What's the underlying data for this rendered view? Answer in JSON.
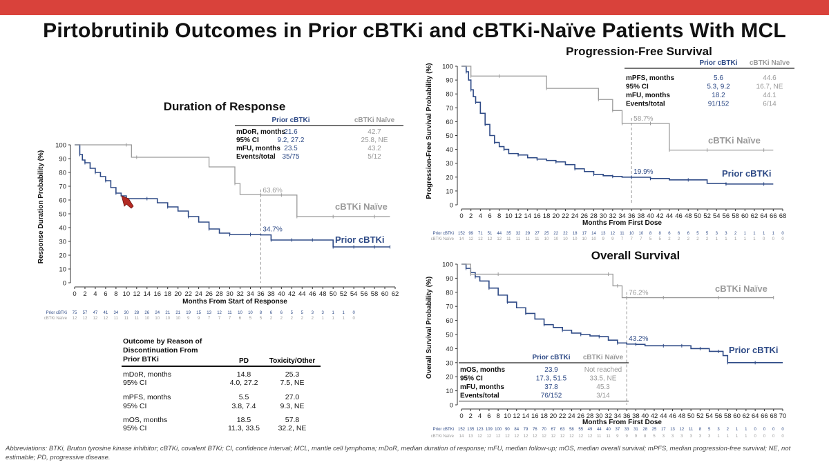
{
  "title": "Pirtobrutinib Outcomes in Prior cBTKi and cBTKi-Naïve Patients With MCL",
  "colors": {
    "accent_bar": "#d9423b",
    "prior": "#2e4a86",
    "naive": "#9a9a9a"
  },
  "chart_data": [
    {
      "type": "line",
      "title": "Duration of Response",
      "xlabel": "Months From Start of Response",
      "ylabel": "Response Duration Probability (%)",
      "xlim": [
        0,
        62
      ],
      "ylim": [
        0,
        100
      ],
      "xticks": [
        0,
        2,
        4,
        6,
        8,
        10,
        12,
        14,
        16,
        18,
        20,
        22,
        24,
        26,
        28,
        30,
        32,
        34,
        36,
        38,
        40,
        42,
        44,
        46,
        48,
        50,
        52,
        54,
        56,
        58,
        60,
        62
      ],
      "yticks": [
        0,
        10,
        20,
        30,
        40,
        50,
        60,
        70,
        80,
        90,
        100
      ],
      "series": [
        {
          "name": "Prior cBTKi",
          "x": [
            0,
            1,
            1.5,
            2,
            3,
            4,
            5,
            6,
            7,
            8,
            9,
            10,
            12,
            14,
            16,
            18,
            20,
            22,
            24,
            26,
            28,
            30,
            32,
            34,
            36,
            38,
            40,
            42,
            44,
            46,
            48,
            50,
            52,
            54,
            56,
            58,
            60,
            61
          ],
          "y": [
            100,
            93,
            89,
            87,
            83,
            80,
            77,
            74,
            69,
            65,
            63,
            61,
            61,
            61,
            58,
            55,
            52,
            48,
            44,
            39,
            36,
            35,
            35,
            35,
            34.7,
            31,
            31,
            31,
            31,
            31,
            31,
            26,
            26,
            26,
            26,
            26,
            26,
            26
          ]
        },
        {
          "name": "cBTKi Naïve",
          "x": [
            0,
            10,
            11,
            12,
            26,
            31,
            32,
            36,
            38,
            40,
            42,
            43,
            46,
            50,
            54,
            58,
            61
          ],
          "y": [
            100,
            100,
            91,
            91,
            84,
            72,
            64,
            63.6,
            63.6,
            63.6,
            63.6,
            48,
            48,
            48,
            48,
            48,
            48
          ]
        }
      ],
      "annotations": [
        {
          "x": 36,
          "text": "63.6%"
        },
        {
          "x": 36,
          "text": "34.7%"
        }
      ],
      "series_labels": [
        "cBTKi Naïve",
        "Prior cBTKi"
      ],
      "stats": {
        "headers": [
          "Prior cBTKi",
          "cBTKi Naïve"
        ],
        "rows": [
          {
            "label": "mDoR, months",
            "prior": "21.6",
            "naive": "42.7"
          },
          {
            "label": "95% CI",
            "prior": "9.2, 27.2",
            "naive": "25.8, NE"
          },
          {
            "label": "mFU, months",
            "prior": "23.5",
            "naive": "43.2"
          },
          {
            "label": "Events/total",
            "prior": "35/75",
            "naive": "5/12"
          }
        ]
      },
      "risk_table": {
        "prior_label": "Prior cBTKi",
        "naive_label": "cBTKi Naïve",
        "prior": [
          "75",
          "57",
          "47",
          "41",
          "34",
          "30",
          "28",
          "26",
          "24",
          "21",
          "21",
          "19",
          "15",
          "13",
          "12",
          "11",
          "10",
          "10",
          "8",
          "6",
          "6",
          "5",
          "5",
          "3",
          "3",
          "1",
          "1",
          "0"
        ],
        "naive": [
          "12",
          "12",
          "12",
          "12",
          "11",
          "11",
          "11",
          "10",
          "10",
          "10",
          "10",
          "9",
          "9",
          "7",
          "7",
          "7",
          "6",
          "5",
          "5",
          "2",
          "2",
          "2",
          "2",
          "2",
          "1",
          "1",
          "1",
          "0"
        ]
      }
    },
    {
      "type": "line",
      "title": "Progression-Free Survival",
      "xlabel": "Months From First Dose",
      "ylabel": "Progression-Free Survival Probability (%)",
      "xlim": [
        0,
        68
      ],
      "ylim": [
        0,
        100
      ],
      "xticks": [
        0,
        2,
        4,
        6,
        8,
        10,
        12,
        14,
        16,
        18,
        20,
        22,
        24,
        26,
        28,
        30,
        32,
        34,
        36,
        38,
        40,
        42,
        44,
        46,
        48,
        50,
        52,
        54,
        56,
        58,
        60,
        62,
        64,
        66,
        68
      ],
      "yticks": [
        0,
        10,
        20,
        30,
        40,
        50,
        60,
        70,
        80,
        90,
        100
      ],
      "series": [
        {
          "name": "Prior cBTKi",
          "x": [
            0,
            1,
            1.5,
            2,
            2.5,
            3,
            4,
            5,
            6,
            7,
            8,
            9,
            10,
            12,
            14,
            16,
            18,
            20,
            22,
            24,
            26,
            28,
            30,
            32,
            34,
            36,
            38,
            40,
            44,
            48,
            52,
            56,
            60,
            64,
            66
          ],
          "y": [
            100,
            96,
            90,
            83,
            78,
            74,
            66,
            58,
            50,
            45,
            42,
            40,
            37,
            36,
            34,
            33,
            32,
            31,
            29,
            26,
            24,
            22,
            21,
            20.5,
            20,
            19.9,
            19.9,
            19,
            18,
            18,
            15.5,
            15,
            15,
            15,
            15
          ]
        },
        {
          "name": "cBTKi Naïve",
          "x": [
            0,
            2,
            4,
            8,
            16,
            18,
            26,
            29,
            30,
            32,
            33,
            34,
            36,
            40,
            42,
            44,
            48,
            52,
            58,
            64,
            66
          ],
          "y": [
            100,
            92.9,
            92.9,
            92.9,
            92.9,
            84,
            84,
            76,
            76,
            68,
            68,
            58.7,
            58.7,
            58.7,
            58.7,
            39.5,
            39.5,
            39.5,
            39.5,
            39.5,
            39.5
          ]
        }
      ],
      "annotations": [
        {
          "x": 36,
          "text": "58.7%"
        },
        {
          "x": 36,
          "text": "19.9%"
        }
      ],
      "series_labels": [
        "cBTKi Naïve",
        "Prior cBTKi"
      ],
      "stats": {
        "headers": [
          "Prior cBTKi",
          "cBTKi Naïve"
        ],
        "rows": [
          {
            "label": "mPFS, months",
            "prior": "5.6",
            "naive": "44.6"
          },
          {
            "label": "95% CI",
            "prior": "5.3, 9.2",
            "naive": "16.7, NE"
          },
          {
            "label": "mFU, months",
            "prior": "18.2",
            "naive": "44.1"
          },
          {
            "label": "Events/total",
            "prior": "91/152",
            "naive": "6/14"
          }
        ]
      },
      "risk_table": {
        "prior_label": "Prior cBTKi",
        "naive_label": "cBTKi Naïve",
        "prior": [
          "152",
          "99",
          "71",
          "51",
          "44",
          "35",
          "32",
          "29",
          "27",
          "25",
          "22",
          "22",
          "18",
          "17",
          "14",
          "13",
          "12",
          "11",
          "10",
          "10",
          "8",
          "8",
          "6",
          "6",
          "6",
          "5",
          "5",
          "3",
          "3",
          "2",
          "1",
          "1",
          "1",
          "1",
          "0"
        ],
        "naive": [
          "14",
          "12",
          "12",
          "12",
          "12",
          "11",
          "11",
          "11",
          "11",
          "10",
          "10",
          "10",
          "10",
          "10",
          "10",
          "9",
          "9",
          "7",
          "7",
          "7",
          "5",
          "5",
          "2",
          "2",
          "2",
          "2",
          "2",
          "1",
          "1",
          "1",
          "1",
          "1",
          "0",
          "0",
          "0"
        ]
      }
    },
    {
      "type": "line",
      "title": "Overall Survival",
      "xlabel": "Months From First Dose",
      "ylabel": "Overall Survival Probability (%)",
      "xlim": [
        0,
        70
      ],
      "ylim": [
        0,
        100
      ],
      "xticks": [
        0,
        2,
        4,
        6,
        8,
        10,
        12,
        14,
        16,
        18,
        20,
        22,
        24,
        26,
        28,
        30,
        32,
        34,
        36,
        38,
        40,
        42,
        44,
        46,
        48,
        50,
        52,
        54,
        56,
        58,
        60,
        62,
        64,
        66,
        68,
        70
      ],
      "yticks": [
        0,
        10,
        20,
        30,
        40,
        50,
        60,
        70,
        80,
        90,
        100
      ],
      "series": [
        {
          "name": "Prior cBTKi",
          "x": [
            0,
            1,
            2,
            3,
            4,
            6,
            8,
            10,
            12,
            14,
            16,
            18,
            20,
            22,
            24,
            26,
            28,
            30,
            32,
            34,
            36,
            38,
            40,
            44,
            46,
            48,
            50,
            52,
            54,
            56,
            57,
            58,
            60,
            64,
            70
          ],
          "y": [
            100,
            97,
            94,
            91,
            88,
            83,
            78,
            73,
            69,
            65,
            61,
            57,
            55,
            53,
            51,
            50,
            49,
            48.5,
            46,
            44,
            43.2,
            43,
            42,
            42,
            42,
            42,
            40,
            40,
            38,
            38,
            35,
            30,
            30,
            30,
            30
          ]
        },
        {
          "name": "cBTKi Naïve",
          "x": [
            0,
            2,
            4,
            8,
            16,
            32,
            33,
            34,
            35,
            36,
            40,
            44,
            48,
            56,
            62,
            68
          ],
          "y": [
            100,
            92.9,
            92.9,
            92.9,
            92.9,
            92.9,
            84.6,
            84.6,
            76.2,
            76.2,
            76.2,
            76.2,
            76.2,
            76.2,
            76.2,
            76.2
          ]
        }
      ],
      "annotations": [
        {
          "x": 36,
          "text": "76.2%"
        },
        {
          "x": 36,
          "text": "43.2%"
        }
      ],
      "series_labels": [
        "cBTKi Naïve",
        "Prior cBTKi"
      ],
      "stats": {
        "headers": [
          "Prior cBTKi",
          "cBTKi Naïve"
        ],
        "rows": [
          {
            "label": "mOS, months",
            "prior": "23.9",
            "naive": "Not reached"
          },
          {
            "label": "95% CI",
            "prior": "17.3, 51.5",
            "naive": "33.5, NE"
          },
          {
            "label": "mFU, months",
            "prior": "37.8",
            "naive": "45.3"
          },
          {
            "label": "Events/total",
            "prior": "76/152",
            "naive": "3/14"
          }
        ]
      },
      "risk_table": {
        "prior_label": "Prior cBTKi",
        "naive_label": "cBTKi Naïve",
        "prior": [
          "152",
          "135",
          "123",
          "109",
          "100",
          "90",
          "84",
          "79",
          "76",
          "70",
          "67",
          "63",
          "58",
          "55",
          "49",
          "44",
          "40",
          "37",
          "33",
          "31",
          "28",
          "25",
          "17",
          "13",
          "12",
          "11",
          "8",
          "5",
          "3",
          "2",
          "1",
          "1",
          "0",
          "0",
          "0",
          "0"
        ],
        "naive": [
          "14",
          "13",
          "12",
          "12",
          "12",
          "12",
          "12",
          "12",
          "12",
          "12",
          "12",
          "12",
          "12",
          "12",
          "12",
          "11",
          "11",
          "9",
          "9",
          "9",
          "8",
          "5",
          "3",
          "3",
          "3",
          "3",
          "3",
          "3",
          "1",
          "1",
          "1",
          "1",
          "0",
          "0",
          "0",
          "0"
        ]
      }
    }
  ],
  "discontinuation": {
    "title": "Outcome by Reason of\nDiscontinuation From\nPrior BTKi",
    "col_pd": "PD",
    "col_tox": "Toxicity/Other",
    "rows": [
      {
        "label": "mDoR, months",
        "pd": "14.8",
        "tox": "25.3"
      },
      {
        "label": "95% CI",
        "pd": "4.0, 27.2",
        "tox": "7.5, NE"
      },
      {
        "label": "mPFS, months",
        "pd": "5.5",
        "tox": "27.0"
      },
      {
        "label": "95% CI",
        "pd": "3.8, 7.4",
        "tox": "9.3, NE"
      },
      {
        "label": "mOS, months",
        "pd": "18.5",
        "tox": "57.8"
      },
      {
        "label": "95% CI",
        "pd": "11.3, 33.5",
        "tox": "32.2, NE"
      }
    ]
  },
  "abbreviations": "Abbreviations: BTKi, Bruton tyrosine kinase inhibitor; cBTKi, covalent BTKi; CI, confidence interval; MCL, mantle cell lymphoma; mDoR, median duration of response; mFU, median follow-up; mOS, median overall survival; mPFS, median progression-free survival; NE, not estimable; PD, progressive disease."
}
